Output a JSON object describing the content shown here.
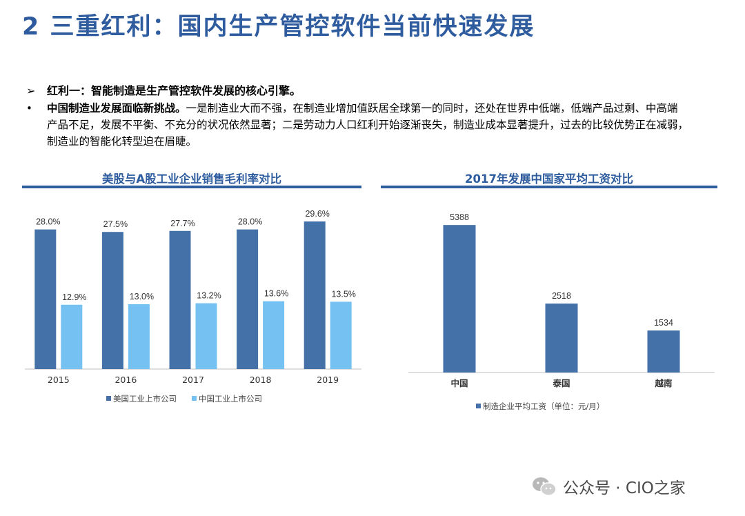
{
  "title": "2 三重红利：国内生产管控软件当前快速发展",
  "arrow_mark": "➢",
  "arrow_text": "红利一：智能制造是生产管控软件发展的核心引擎。",
  "bullet_mark": "•",
  "bullet_lead": "中国制造业发展面临新挑战。",
  "bullet_text": "一是制造业大而不强，在制造业增加值跃居全球第一的同时，还处在世界中低端，低端产品过剩、中高端产品不足，发展不平衡、不充分的状况依然显著；二是劳动力人口红利开始逐渐丧失，制造业成本显著提升，过去的比较优势正在减弱，制造业的智能化转型迫在眉睫。",
  "watermark": "公众号 · CIO之家",
  "colors": {
    "title": "#2e5c9e",
    "series_dark": "#4472a8",
    "series_light": "#75c1f2",
    "axis": "#bfbfbf"
  },
  "chart_data": [
    {
      "type": "bar",
      "title": "美股与A股工业企业销售毛利率对比",
      "categories": [
        "2015",
        "2016",
        "2017",
        "2018",
        "2019"
      ],
      "series": [
        {
          "name": "美国工业上市公司",
          "values": [
            28.0,
            27.5,
            27.7,
            28.0,
            29.6
          ],
          "labels": [
            "28.0%",
            "27.5%",
            "27.7%",
            "28.0%",
            "29.6%"
          ]
        },
        {
          "name": "中国工业上市公司",
          "values": [
            12.9,
            13.0,
            13.2,
            13.6,
            13.5
          ],
          "labels": [
            "12.9%",
            "13.0%",
            "13.2%",
            "13.6%",
            "13.5%"
          ]
        }
      ],
      "ylim": [
        0,
        35
      ],
      "grid": false,
      "legend": "bottom-left"
    },
    {
      "type": "bar",
      "title": "2017年发展中国家平均工资对比",
      "categories": [
        "中国",
        "泰国",
        "越南"
      ],
      "series": [
        {
          "name": "制造企业平均工资（单位：元/月）",
          "values": [
            5388,
            2518,
            1534
          ],
          "labels": [
            "5388",
            "2518",
            "1534"
          ]
        }
      ],
      "ylim": [
        0,
        6500
      ],
      "grid": false,
      "legend": "bottom-left"
    }
  ]
}
